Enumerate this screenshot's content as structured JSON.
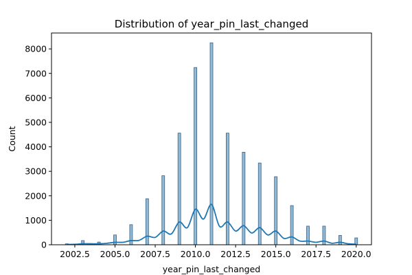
{
  "chart_data": {
    "type": "bar",
    "title": "Distribution of year_pin_last_changed",
    "xlabel": "year_pin_last_changed",
    "ylabel": "Count",
    "xlim": [
      2001.05,
      2020.95
    ],
    "ylim": [
      0,
      8650
    ],
    "grid": false,
    "bar_color": "#1f77b4",
    "kde_color": "#1f77b4",
    "x_ticks": [
      2002.5,
      2005.0,
      2007.5,
      2010.0,
      2012.5,
      2015.0,
      2017.5,
      2020.0
    ],
    "x_tick_labels": [
      "2002.5",
      "2005.0",
      "2007.5",
      "2010.0",
      "2012.5",
      "2015.0",
      "2017.5",
      "2020.0"
    ],
    "y_ticks": [
      0,
      1000,
      2000,
      3000,
      4000,
      5000,
      6000,
      7000,
      8000
    ],
    "y_tick_labels": [
      "0",
      "1000",
      "2000",
      "3000",
      "4000",
      "5000",
      "6000",
      "7000",
      "8000"
    ],
    "bars": {
      "x": [
        2002,
        2003,
        2004,
        2005,
        2006,
        2007,
        2008,
        2009,
        2010,
        2011,
        2012,
        2013,
        2014,
        2015,
        2016,
        2017,
        2018,
        2019,
        2020
      ],
      "values": [
        40,
        170,
        110,
        400,
        820,
        1880,
        2820,
        4560,
        7240,
        8250,
        4560,
        3780,
        3340,
        2780,
        1600,
        760,
        760,
        380,
        280
      ]
    },
    "kde": {
      "x": [
        2002.0,
        2002.5,
        2003.0,
        2003.5,
        2004.0,
        2004.5,
        2005.0,
        2005.5,
        2006.0,
        2006.5,
        2007.0,
        2007.5,
        2008.0,
        2008.5,
        2009.0,
        2009.5,
        2010.0,
        2010.5,
        2011.0,
        2011.5,
        2012.0,
        2012.5,
        2013.0,
        2013.5,
        2014.0,
        2014.5,
        2015.0,
        2015.5,
        2016.0,
        2016.5,
        2017.0,
        2017.5,
        2018.0,
        2018.5,
        2019.0,
        2019.5,
        2020.0
      ],
      "y": [
        10,
        20,
        40,
        40,
        40,
        60,
        100,
        100,
        170,
        180,
        350,
        300,
        560,
        440,
        930,
        700,
        1450,
        1050,
        1650,
        750,
        930,
        560,
        780,
        480,
        700,
        400,
        560,
        260,
        320,
        150,
        150,
        100,
        150,
        60,
        100,
        40,
        20
      ]
    }
  }
}
